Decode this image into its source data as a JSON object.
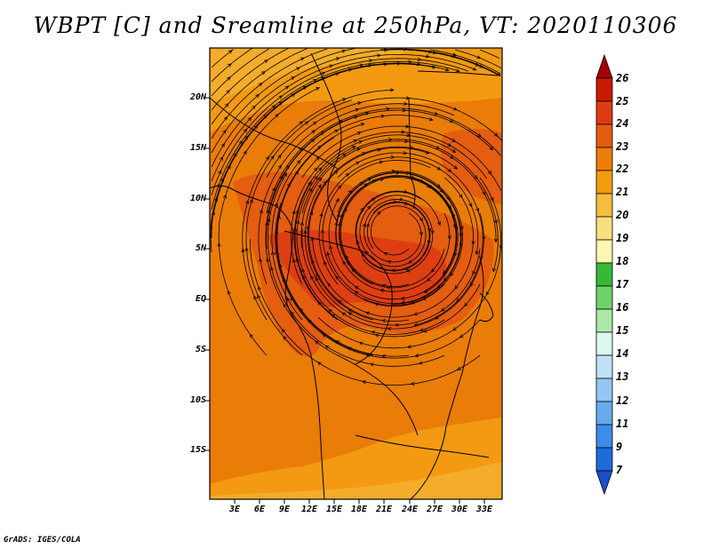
{
  "title": "WBPT [C] and Sreamline at 250hPa, VT: 2020110306",
  "credit": "GrADS: IGES/COLA",
  "map": {
    "lat_ticks": [
      "20N",
      "15N",
      "10N",
      "5N",
      "EQ",
      "5S",
      "10S",
      "15S"
    ],
    "lon_ticks": [
      "3E",
      "6E",
      "9E",
      "12E",
      "15E",
      "18E",
      "21E",
      "24E",
      "27E",
      "30E",
      "33E"
    ],
    "lat_range": [
      -20,
      25
    ],
    "lon_range": [
      0,
      35
    ],
    "fill_colors": {
      "c20": "#f5ac2a",
      "c21": "#f39a12",
      "c22": "#ea7c08",
      "c23": "#e45d10",
      "c24": "#dd3f12"
    }
  },
  "colorbar": {
    "levels": [
      "26",
      "25",
      "24",
      "23",
      "22",
      "21",
      "20",
      "19",
      "18",
      "17",
      "16",
      "15",
      "14",
      "13",
      "12",
      "11",
      "9",
      "7"
    ],
    "colors": [
      "#a30000",
      "#c81a00",
      "#dd3c12",
      "#e55c0f",
      "#ee7d07",
      "#f39c0e",
      "#f7bd3d",
      "#fadf7f",
      "#fdf5b3",
      "#37b938",
      "#6fd36b",
      "#a9e9a5",
      "#ddf7f1",
      "#bfe2f8",
      "#93c7f3",
      "#67aaef",
      "#3d8ce8",
      "#1f6bdc",
      "#1a4ecc"
    ]
  }
}
